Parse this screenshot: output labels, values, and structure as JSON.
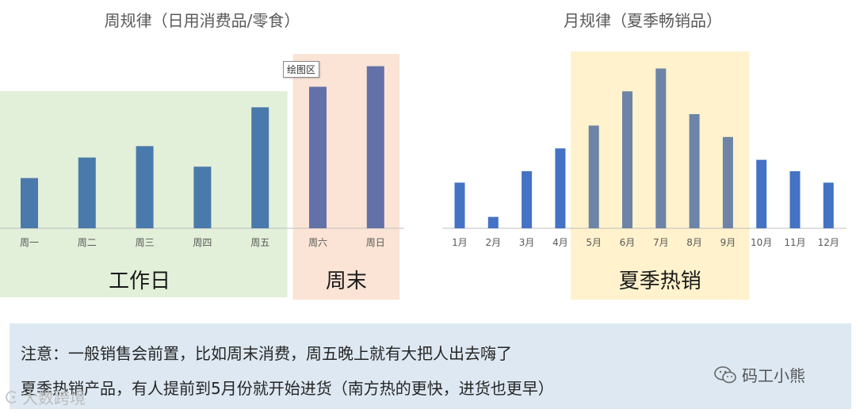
{
  "chart_data": [
    {
      "type": "bar",
      "title": "周规律（日用消费品/零食）",
      "categories": [
        "周一",
        "周二",
        "周三",
        "周四",
        "周五",
        "周六",
        "周日"
      ],
      "values": [
        22,
        31,
        36,
        27,
        53,
        62,
        71
      ],
      "ylim": [
        0,
        75
      ],
      "grid": false,
      "colors": {
        "workday": "#4a7aab",
        "weekend": "#6471a8"
      },
      "regions": [
        {
          "label": "工作日",
          "from": "周一",
          "to": "周五",
          "color": "#e2efd9"
        },
        {
          "label": "周末",
          "from": "周六",
          "to": "周日",
          "color": "#fbe4d5"
        }
      ]
    },
    {
      "type": "bar",
      "title": "月规律（夏季畅销品）",
      "categories": [
        "1月",
        "2月",
        "3月",
        "4月",
        "5月",
        "6月",
        "7月",
        "8月",
        "9月",
        "10月",
        "11月",
        "12月"
      ],
      "values": [
        20,
        5,
        25,
        35,
        45,
        60,
        70,
        50,
        40,
        30,
        25,
        20
      ],
      "ylim": [
        0,
        75
      ],
      "grid": false,
      "colors": {
        "normal": "#4472c4",
        "season": "#6d84a6"
      },
      "regions": [
        {
          "label": "夏季热销",
          "from": "5月",
          "to": "9月",
          "color": "#fff2cc"
        }
      ]
    }
  ],
  "tooltip": "绘图区",
  "notes": {
    "line1": "注意：一般销售会前置，比如周末消费，周五晚上就有大把人出去嗨了",
    "line2": "夏季热销产品，有人提前到5月份就开始进货（南方热的更快，进货也更早）"
  },
  "watermarks": {
    "wechat": "码工小熊",
    "platform": "大数跨境",
    "icon_names": [
      "wechat-icon",
      "platform-logo-icon"
    ]
  }
}
